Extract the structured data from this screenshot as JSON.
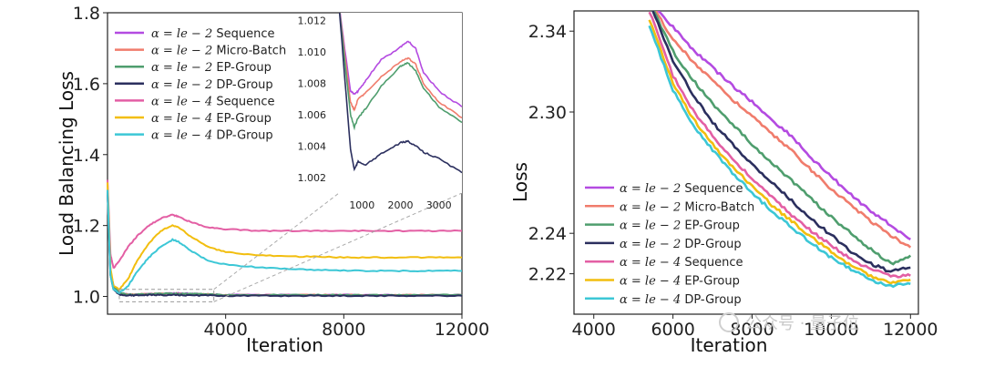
{
  "chart_data": [
    {
      "type": "line",
      "xlabel": "Iteration",
      "ylabel": "Load Balancing Loss",
      "xlim": [
        0,
        12000
      ],
      "ylim": [
        0.95,
        1.8
      ],
      "xticks": [
        4000,
        8000,
        12000
      ],
      "yticks": [
        1.0,
        1.2,
        1.4,
        1.6,
        1.8
      ],
      "legend_position": "top-left",
      "x": [
        0,
        100,
        200,
        400,
        700,
        1000,
        1400,
        1800,
        2200,
        2400,
        2800,
        3400,
        4000,
        5000,
        6000,
        7000,
        8000,
        9000,
        10000,
        11000,
        12000
      ],
      "series": [
        {
          "name": "α = le − 2 Sequence",
          "color": "#b44be1",
          "values": [
            1.3,
            1.07,
            1.03,
            1.01,
            1.005,
            1.006,
            1.007,
            1.008,
            1.009,
            1.009,
            1.008,
            1.006,
            1.004,
            1.004,
            1.004,
            1.004,
            1.004,
            1.004,
            1.004,
            1.004,
            1.004
          ]
        },
        {
          "name": "α = le − 2 Micro-Batch",
          "color": "#f07c6c",
          "values": [
            1.3,
            1.07,
            1.03,
            1.01,
            1.005,
            1.006,
            1.007,
            1.008,
            1.008,
            1.008,
            1.007,
            1.006,
            1.004,
            1.004,
            1.004,
            1.004,
            1.004,
            1.004,
            1.004,
            1.004,
            1.004
          ]
        },
        {
          "name": "α = le − 2 EP-Group",
          "color": "#4f9e6e",
          "values": [
            1.3,
            1.07,
            1.03,
            1.01,
            1.005,
            1.006,
            1.007,
            1.008,
            1.008,
            1.008,
            1.007,
            1.006,
            1.004,
            1.004,
            1.004,
            1.004,
            1.004,
            1.004,
            1.004,
            1.004,
            1.004
          ]
        },
        {
          "name": "α = le − 2 DP-Group",
          "color": "#2b2f5e",
          "values": [
            1.3,
            1.06,
            1.02,
            1.005,
            1.003,
            1.003,
            1.004,
            1.004,
            1.004,
            1.004,
            1.003,
            1.003,
            1.002,
            1.002,
            1.002,
            1.002,
            1.002,
            1.002,
            1.002,
            1.002,
            1.002
          ]
        },
        {
          "name": "α = le − 4 Sequence",
          "color": "#e35fa4",
          "values": [
            1.33,
            1.12,
            1.08,
            1.1,
            1.14,
            1.17,
            1.2,
            1.22,
            1.23,
            1.225,
            1.21,
            1.195,
            1.19,
            1.185,
            1.185,
            1.185,
            1.185,
            1.185,
            1.185,
            1.185,
            1.185
          ]
        },
        {
          "name": "α = le − 4 EP-Group",
          "color": "#f2be0f",
          "values": [
            1.32,
            1.08,
            1.03,
            1.02,
            1.05,
            1.1,
            1.15,
            1.185,
            1.2,
            1.195,
            1.17,
            1.14,
            1.125,
            1.117,
            1.113,
            1.112,
            1.11,
            1.11,
            1.11,
            1.11,
            1.11
          ]
        },
        {
          "name": "α = le − 4 DP-Group",
          "color": "#3cc7d6",
          "values": [
            1.3,
            1.06,
            1.02,
            1.01,
            1.03,
            1.07,
            1.11,
            1.14,
            1.16,
            1.155,
            1.13,
            1.1,
            1.09,
            1.083,
            1.078,
            1.075,
            1.073,
            1.072,
            1.072,
            1.072,
            1.072
          ]
        }
      ],
      "inset": {
        "xlim": [
          400,
          3600
        ],
        "ylim": [
          1.001,
          1.0125
        ],
        "xticks": [
          1000,
          2000,
          3000
        ],
        "yticks": [
          1.002,
          1.004,
          1.006,
          1.008,
          1.01,
          1.012
        ],
        "x": [
          400,
          700,
          800,
          900,
          1100,
          1500,
          2000,
          2200,
          2400,
          2600,
          3000,
          3600
        ],
        "series": [
          {
            "name": "α = le − 2 Sequence",
            "values": [
              1.013,
              1.0075,
              1.0073,
              1.0075,
              1.0082,
              1.0095,
              1.0103,
              1.0107,
              1.0102,
              1.0087,
              1.0075,
              1.0065
            ]
          },
          {
            "name": "α = le − 2 Micro-Batch",
            "values": [
              1.013,
              1.0068,
              1.0063,
              1.007,
              1.0074,
              1.0084,
              1.0094,
              1.0096,
              1.0092,
              1.008,
              1.0068,
              1.0058
            ]
          },
          {
            "name": "α = le − 2 EP-Group",
            "values": [
              1.013,
              1.006,
              1.0052,
              1.0058,
              1.0064,
              1.0078,
              1.0091,
              1.0093,
              1.0088,
              1.0077,
              1.0065,
              1.0055
            ]
          },
          {
            "name": "α = le − 2 DP-Group",
            "values": [
              1.013,
              1.0038,
              1.0025,
              1.003,
              1.0028,
              1.0035,
              1.0042,
              1.0043,
              1.004,
              1.0036,
              1.0032,
              1.0023
            ]
          }
        ]
      }
    },
    {
      "type": "line",
      "xlabel": "Iteration",
      "ylabel": "Loss",
      "xlim": [
        3500,
        12200
      ],
      "ylim": [
        2.2,
        2.35
      ],
      "xticks": [
        4000,
        6000,
        8000,
        10000,
        12000
      ],
      "yticks": [
        2.22,
        2.24,
        2.3,
        2.34
      ],
      "legend_position": "bottom-left",
      "x": [
        5400,
        6000,
        6500,
        7000,
        7500,
        8000,
        8500,
        9000,
        9500,
        10000,
        10500,
        11000,
        11500,
        12000
      ],
      "series": [
        {
          "name": "α = le − 2 Sequence",
          "color": "#b44be1",
          "values": [
            2.355,
            2.342,
            2.331,
            2.322,
            2.313,
            2.305,
            2.296,
            2.288,
            2.277,
            2.268,
            2.259,
            2.251,
            2.244,
            2.237
          ]
        },
        {
          "name": "α = le − 2 Micro-Batch",
          "color": "#f07c6c",
          "values": [
            2.355,
            2.336,
            2.325,
            2.316,
            2.306,
            2.298,
            2.289,
            2.281,
            2.271,
            2.262,
            2.254,
            2.246,
            2.239,
            2.233
          ]
        },
        {
          "name": "α = le − 2 EP-Group",
          "color": "#4f9e6e",
          "values": [
            2.355,
            2.33,
            2.316,
            2.304,
            2.294,
            2.284,
            2.275,
            2.266,
            2.257,
            2.248,
            2.24,
            2.232,
            2.225,
            2.229
          ]
        },
        {
          "name": "α = le − 2 DP-Group",
          "color": "#2b2f5e",
          "values": [
            2.355,
            2.325,
            2.309,
            2.295,
            2.284,
            2.274,
            2.265,
            2.256,
            2.247,
            2.239,
            2.231,
            2.225,
            2.221,
            2.223
          ]
        },
        {
          "name": "α = le − 4 Sequence",
          "color": "#e35fa4",
          "values": [
            2.35,
            2.318,
            2.301,
            2.288,
            2.277,
            2.267,
            2.258,
            2.249,
            2.241,
            2.234,
            2.227,
            2.222,
            2.219,
            2.219
          ]
        },
        {
          "name": "α = le − 4 EP-Group",
          "color": "#f2be0f",
          "values": [
            2.346,
            2.314,
            2.297,
            2.284,
            2.273,
            2.263,
            2.254,
            2.246,
            2.238,
            2.231,
            2.224,
            2.219,
            2.216,
            2.217
          ]
        },
        {
          "name": "α = le − 4 DP-Group",
          "color": "#3cc7d6",
          "values": [
            2.343,
            2.311,
            2.294,
            2.281,
            2.27,
            2.26,
            2.251,
            2.243,
            2.235,
            2.228,
            2.222,
            2.217,
            2.214,
            2.215
          ]
        }
      ]
    }
  ],
  "watermark": {
    "text": "公众号 · 量子位"
  }
}
